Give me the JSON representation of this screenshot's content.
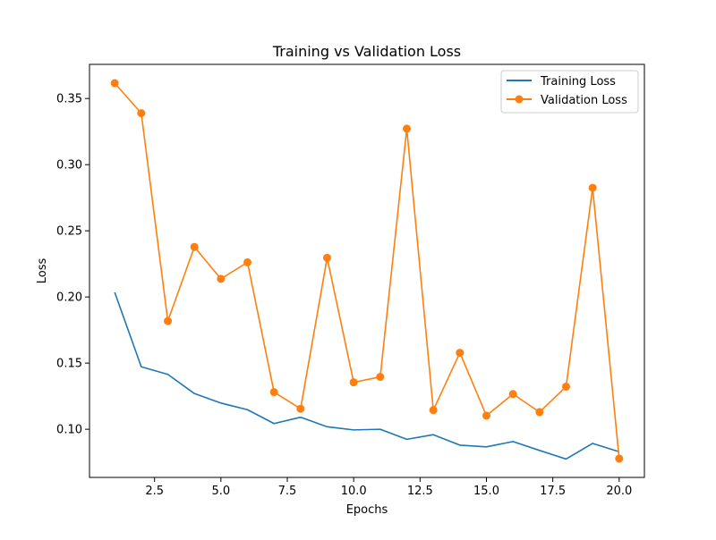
{
  "chart_data": {
    "type": "line",
    "title": "Training vs Validation Loss",
    "xlabel": "Epochs",
    "ylabel": "Loss",
    "xlim": [
      0.05,
      20.95
    ],
    "ylim": [
      0.0636,
      0.3758
    ],
    "x_ticks": [
      2.5,
      5.0,
      7.5,
      10.0,
      12.5,
      15.0,
      17.5,
      20.0
    ],
    "x_tick_labels": [
      "2.5",
      "5.0",
      "7.5",
      "10.0",
      "12.5",
      "15.0",
      "17.5",
      "20.0"
    ],
    "y_ticks": [
      0.1,
      0.15,
      0.2,
      0.25,
      0.3,
      0.35
    ],
    "y_tick_labels": [
      "0.10",
      "0.15",
      "0.20",
      "0.25",
      "0.30",
      "0.35"
    ],
    "grid": false,
    "legend_position": "top-right",
    "x": [
      1,
      2,
      3,
      4,
      5,
      6,
      7,
      8,
      9,
      10,
      11,
      12,
      13,
      14,
      15,
      16,
      17,
      18,
      19,
      20
    ],
    "series": [
      {
        "name": "Training Loss",
        "color": "#1f77b4",
        "marker": "none",
        "values": [
          0.2035,
          0.1472,
          0.1415,
          0.127,
          0.1198,
          0.1148,
          0.1043,
          0.1091,
          0.1019,
          0.0995,
          0.1,
          0.0924,
          0.0959,
          0.088,
          0.0867,
          0.0907,
          0.084,
          0.0775,
          0.0893,
          0.083
        ]
      },
      {
        "name": "Validation Loss",
        "color": "#ff7f0e",
        "marker": "circle",
        "values": [
          0.3616,
          0.3389,
          0.1818,
          0.2378,
          0.2137,
          0.2262,
          0.1281,
          0.1155,
          0.2296,
          0.1355,
          0.1396,
          0.3272,
          0.1145,
          0.1578,
          0.1103,
          0.1266,
          0.113,
          0.1322,
          0.2825,
          0.0778
        ]
      }
    ]
  }
}
